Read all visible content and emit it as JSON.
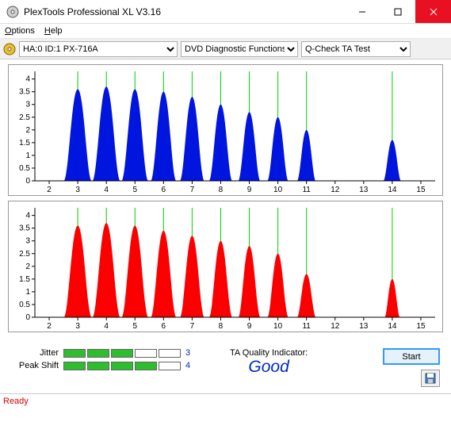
{
  "window": {
    "title": "PlexTools Professional XL V3.16"
  },
  "menu": {
    "options": "Options",
    "help": "Help"
  },
  "toolbar": {
    "device": "HA:0 ID:1   PX-716A",
    "func": "DVD Diagnostic Functions",
    "test": "Q-Check TA Test"
  },
  "chart": {
    "xmin": 1.5,
    "xmax": 15.5,
    "xticks": [
      2,
      3,
      4,
      5,
      6,
      7,
      8,
      9,
      10,
      11,
      12,
      13,
      14,
      15
    ],
    "ymin": 0,
    "ymax": 4.3,
    "yticks": [
      0,
      0.5,
      1,
      1.5,
      2,
      2.5,
      3,
      3.5,
      4
    ],
    "vlines": [
      3,
      4,
      5,
      6,
      7,
      8,
      9,
      10,
      11,
      14
    ],
    "grid_color": "#00d000",
    "axis_color": "#000000",
    "bg": "#ffffff",
    "peaks_top": [
      {
        "c": 3,
        "h": 3.6,
        "w": 0.48
      },
      {
        "c": 4,
        "h": 3.7,
        "w": 0.48
      },
      {
        "c": 5,
        "h": 3.6,
        "w": 0.46
      },
      {
        "c": 6,
        "h": 3.5,
        "w": 0.44
      },
      {
        "c": 7,
        "h": 3.3,
        "w": 0.42
      },
      {
        "c": 8,
        "h": 3.0,
        "w": 0.4
      },
      {
        "c": 9,
        "h": 2.7,
        "w": 0.38
      },
      {
        "c": 10,
        "h": 2.5,
        "w": 0.36
      },
      {
        "c": 11,
        "h": 2.0,
        "w": 0.32
      },
      {
        "c": 14,
        "h": 1.6,
        "w": 0.3
      }
    ],
    "peaks_bot": [
      {
        "c": 3,
        "h": 3.6,
        "w": 0.48
      },
      {
        "c": 4,
        "h": 3.7,
        "w": 0.48
      },
      {
        "c": 5,
        "h": 3.6,
        "w": 0.46
      },
      {
        "c": 6,
        "h": 3.4,
        "w": 0.44
      },
      {
        "c": 7,
        "h": 3.2,
        "w": 0.42
      },
      {
        "c": 8,
        "h": 3.0,
        "w": 0.4
      },
      {
        "c": 9,
        "h": 2.8,
        "w": 0.38
      },
      {
        "c": 10,
        "h": 2.5,
        "w": 0.36
      },
      {
        "c": 11,
        "h": 1.7,
        "w": 0.32
      },
      {
        "c": 14,
        "h": 1.5,
        "w": 0.26
      }
    ],
    "color_top": "#0015dd",
    "color_bot": "#fb0000"
  },
  "metrics": {
    "jitter": {
      "label": "Jitter",
      "value": "3",
      "filled": 3,
      "total": 5
    },
    "peakshift": {
      "label": "Peak Shift",
      "value": "4",
      "filled": 4,
      "total": 5
    }
  },
  "quality": {
    "label": "TA Quality Indicator:",
    "value": "Good"
  },
  "buttons": {
    "start": "Start"
  },
  "status": {
    "text": "Ready"
  }
}
